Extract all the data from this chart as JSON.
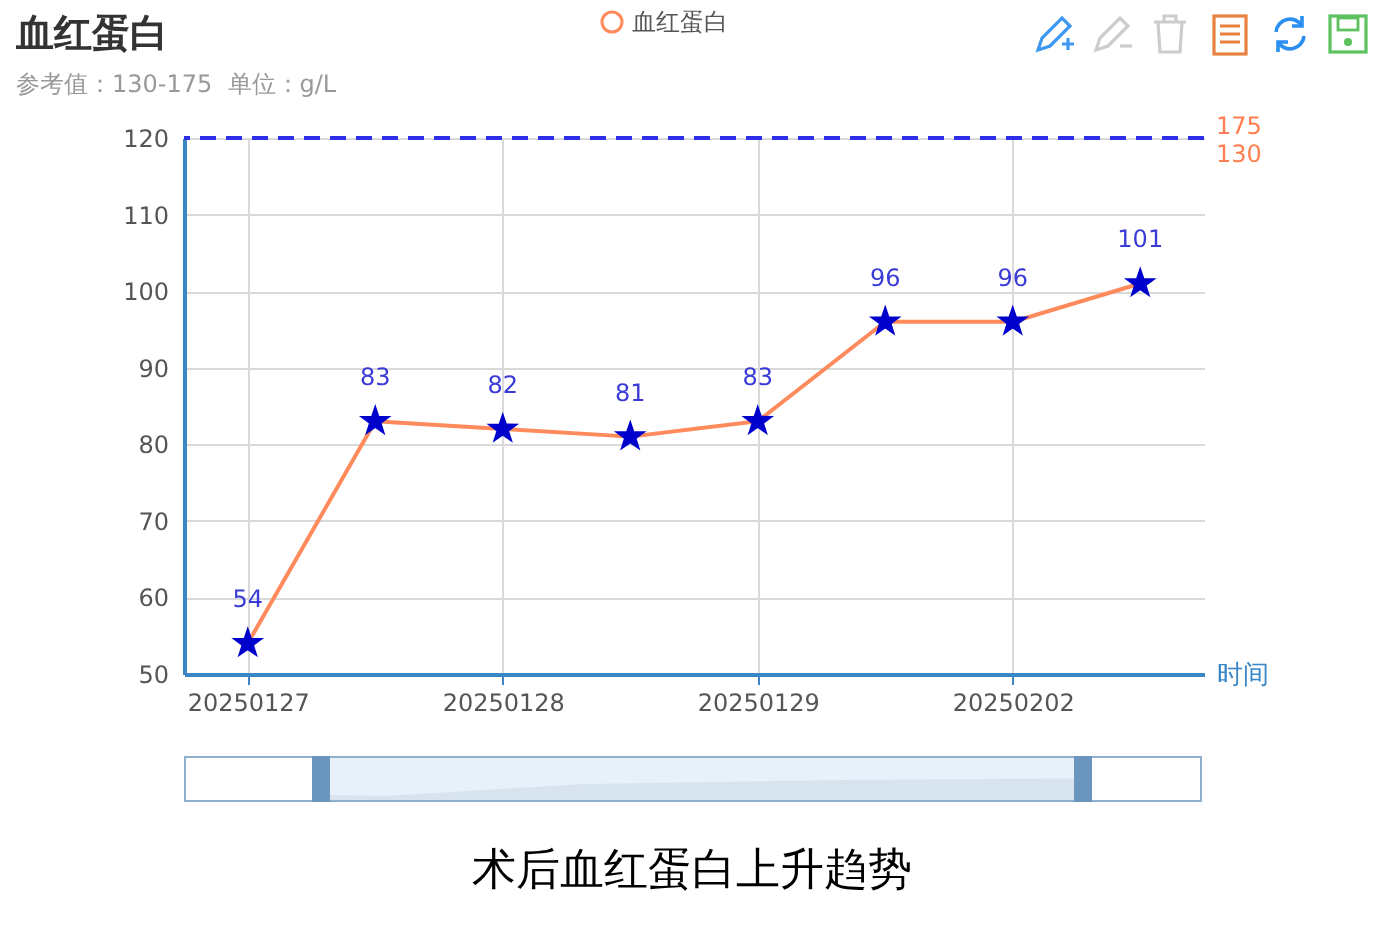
{
  "chart_data": {
    "type": "line",
    "title": "血红蛋白",
    "subtitle": "参考值：130-175  单位：g/L",
    "xlabel": "时间",
    "categories": [
      "20250127",
      null,
      "20250128",
      null,
      "20250129",
      null,
      "20250202",
      null
    ],
    "series": [
      {
        "name": "血红蛋白",
        "color": "#ff8a5b",
        "colors": [
          "#0000cc",
          "#0000cc",
          "#0000cc",
          "#0000cc",
          "#0000cc",
          "#0000cc",
          "#0000cc",
          "#0000cc"
        ],
        "values": [
          54,
          83,
          82,
          81,
          83,
          96,
          96,
          101
        ]
      }
    ],
    "ylim": [
      50,
      120
    ],
    "yticks": [
      50,
      60,
      70,
      80,
      90,
      100,
      110,
      120
    ],
    "grid": true,
    "legend": "top",
    "marker": "star",
    "data_labels": true,
    "ref_lines": [
      {
        "axis": "y",
        "value": 120,
        "color": "#2e2ee6",
        "line_style": "dashed"
      }
    ],
    "annotations": [
      "175",
      "130",
      "术后血红蛋白上升趋势"
    ]
  }
}
